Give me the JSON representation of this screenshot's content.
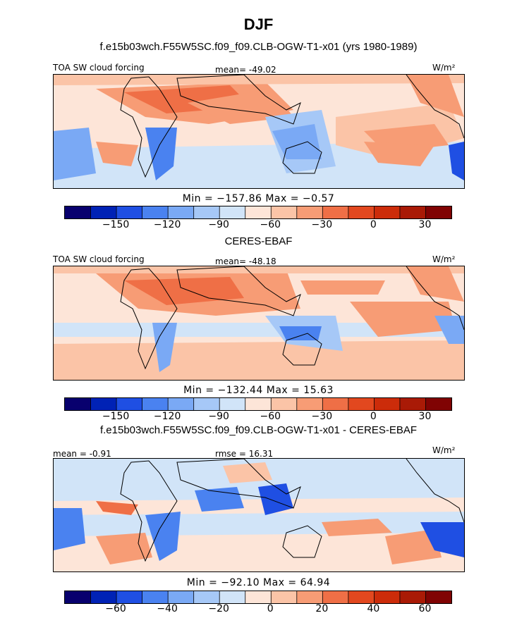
{
  "title": "DJF",
  "colors": [
    "#08006e",
    "#0022b5",
    "#1f4fe3",
    "#4a82f0",
    "#7aa9f5",
    "#a6c8f7",
    "#d1e4f8",
    "#fde5d8",
    "#fbc4a7",
    "#f79c75",
    "#ef6f46",
    "#e2481f",
    "#cc2c0a",
    "#a91a06",
    "#800303"
  ],
  "panel1": {
    "subtitle": "f.e15b03wch.F55W5SC.f09_f09.CLB-OGW-T1-x01 (yrs 1980-1989)",
    "left_label": "TOA SW cloud forcing",
    "center_label": "mean= -49.02",
    "units": "W/m²",
    "minmax": "Min = −157.86 Max =  −0.57",
    "ticks": [
      "−150",
      "−120",
      "−90",
      "−60",
      "−30",
      "0",
      "30"
    ]
  },
  "panel2": {
    "subtitle": "CERES-EBAF",
    "left_label": "TOA SW cloud forcing",
    "center_label": "mean= -48.18",
    "units": "W/m²",
    "minmax": "Min = −132.44 Max =  15.63",
    "ticks": [
      "−150",
      "−120",
      "−90",
      "−60",
      "−30",
      "0",
      "30"
    ]
  },
  "panel3": {
    "subtitle": "f.e15b03wch.F55W5SC.f09_f09.CLB-OGW-T1-x01 - CERES-EBAF",
    "left_label": "mean = -0.91",
    "center_label": "rmse = 16.31",
    "units": "W/m²",
    "minmax": "Min = −92.10 Max =  64.94",
    "ticks": [
      "−60",
      "−40",
      "−20",
      "0",
      "20",
      "40",
      "60"
    ]
  },
  "chart_data": [
    {
      "type": "heatmap",
      "title": "f.e15b03wch.F55W5SC.f09_f09.CLB-OGW-T1-x01 (yrs 1980-1989)",
      "variable": "TOA SW cloud forcing",
      "units": "W/m²",
      "mean": -49.02,
      "min": -157.86,
      "max": -0.57,
      "colorbar_ticks": [
        -150,
        -120,
        -90,
        -60,
        -30,
        0,
        30
      ]
    },
    {
      "type": "heatmap",
      "title": "CERES-EBAF",
      "variable": "TOA SW cloud forcing",
      "units": "W/m²",
      "mean": -48.18,
      "min": -132.44,
      "max": 15.63,
      "colorbar_ticks": [
        -150,
        -120,
        -90,
        -60,
        -30,
        0,
        30
      ]
    },
    {
      "type": "heatmap",
      "title": "f.e15b03wch.F55W5SC.f09_f09.CLB-OGW-T1-x01 - CERES-EBAF",
      "units": "W/m²",
      "mean": -0.91,
      "rmse": 16.31,
      "min": -92.1,
      "max": 64.94,
      "colorbar_ticks": [
        -60,
        -40,
        -20,
        0,
        20,
        40,
        60
      ]
    }
  ]
}
